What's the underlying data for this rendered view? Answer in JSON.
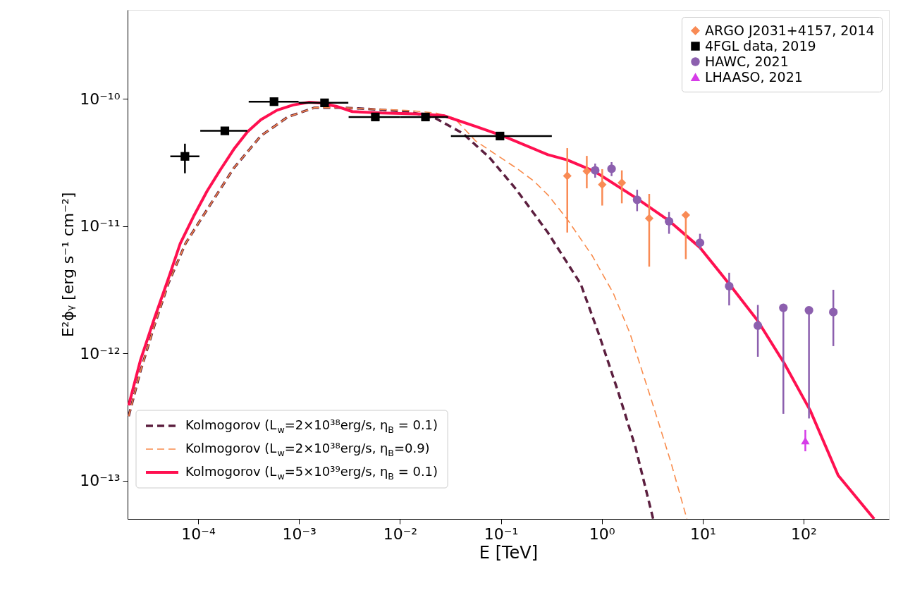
{
  "chart_data": {
    "type": "scatter",
    "xlabel": "E [TeV]",
    "ylabel": "E²ϕᵧ [erg s⁻¹ cm⁻²]",
    "log": "xy",
    "xlim": [
      2e-05,
      700
    ],
    "ylim": [
      5e-14,
      5e-10
    ],
    "xticks": [
      {
        "value": 0.0001,
        "label": "10⁻⁴"
      },
      {
        "value": 0.001,
        "label": "10⁻³"
      },
      {
        "value": 0.01,
        "label": "10⁻²"
      },
      {
        "value": 0.1,
        "label": "10⁻¹"
      },
      {
        "value": 1,
        "label": "10⁰"
      },
      {
        "value": 10,
        "label": "10¹"
      },
      {
        "value": 100,
        "label": "10²"
      }
    ],
    "yticks": [
      {
        "value": 1e-13,
        "label": "10⁻¹³"
      },
      {
        "value": 1e-12,
        "label": "10⁻¹²"
      },
      {
        "value": 1e-11,
        "label": "10⁻¹¹"
      },
      {
        "value": 1e-10,
        "label": "10⁻¹⁰"
      }
    ],
    "legend": "top right",
    "series": [
      {
        "name": "ARGO J2031+4157, 2014",
        "type": "scatter",
        "marker": "diamond",
        "color": "#f98b55",
        "x": [
          0.455,
          0.71,
          1.01,
          1.58,
          2.95,
          6.8
        ],
        "values": [
          2.48e-11,
          2.7e-11,
          2.12e-11,
          2.19e-11,
          1.15e-11,
          1.22e-11
        ],
        "errors": [
          [
            8.9e-12,
            4.1e-11
          ],
          [
            1.98e-11,
            3.56e-11
          ],
          [
            1.45e-11,
            2.8e-11
          ],
          [
            1.51e-11,
            2.74e-11
          ],
          [
            4.8e-12,
            1.79e-11
          ],
          [
            5.5e-12,
            1.22e-11
          ]
        ]
      },
      {
        "name": "4FGL data, 2019",
        "type": "scatter",
        "marker": "square",
        "color": "#000000",
        "x": [
          7.4e-05,
          0.000184,
          0.000565,
          0.00179,
          0.0057,
          0.0179,
          0.098
        ],
        "values": [
          3.53e-11,
          5.6e-11,
          9.5e-11,
          9.3e-11,
          7.2e-11,
          7.2e-11,
          5.1e-11
        ],
        "errors": [
          [
            2.6e-11,
            4.44e-11
          ],
          null,
          null,
          null,
          null,
          null,
          null
        ],
        "xerrors": [
          [
            5.3e-05,
            0.000103
          ],
          [
            0.000105,
            0.000307
          ],
          [
            0.000317,
            0.00099
          ],
          [
            0.00099,
            0.00308
          ],
          [
            0.0031,
            0.01
          ],
          [
            0.01,
            0.03
          ],
          [
            0.032,
            0.32
          ]
        ]
      },
      {
        "name": "HAWC, 2021",
        "type": "scatter",
        "marker": "circle",
        "color": "#8c5fae",
        "x": [
          0.86,
          1.25,
          2.24,
          4.64,
          9.4,
          18.3,
          35.2,
          63,
          113,
          197
        ],
        "values": [
          2.74e-11,
          2.82e-11,
          1.61e-11,
          1.09e-11,
          7.4e-12,
          3.37e-12,
          1.65e-12,
          2.28e-12,
          2.18e-12,
          2.11e-12
        ],
        "errors": [
          [
            2.4e-11,
            3.1e-11
          ],
          [
            2.47e-11,
            3.18e-11
          ],
          [
            1.31e-11,
            1.93e-11
          ],
          [
            8.7e-12,
            1.29e-11
          ],
          [
            6.6e-12,
            8.7e-12
          ],
          [
            2.38e-12,
            4.3e-12
          ],
          [
            9.4e-13,
            2.4e-12
          ],
          [
            3.35e-13,
            2.28e-12
          ],
          [
            3.08e-13,
            2.18e-12
          ],
          [
            1.14e-12,
            3.16e-12
          ]
        ]
      },
      {
        "name": "LHAASO, 2021",
        "type": "scatter",
        "marker": "triangle",
        "color": "#d63ce8",
        "x": [
          104
        ],
        "values": [
          2.06e-13
        ],
        "errors": [
          [
            1.7e-13,
            2.5e-13
          ]
        ]
      },
      {
        "name": "Kolmogorov (L$_{w}$=2×10³⁸erg/s, η$_{B}$ = 0.1)",
        "type": "line",
        "line_style": "dashed",
        "color": "#5c1f3f",
        "x": [
          2.05e-05,
          2.69e-05,
          3.7e-05,
          5.1e-05,
          7.5e-05,
          0.000123,
          0.000226,
          0.000419,
          0.000773,
          0.00143,
          0.00263,
          0.00487,
          0.0122,
          0.0225,
          0.0416,
          0.0767,
          0.142,
          0.292,
          0.618,
          0.946,
          1.45,
          2.16,
          3.23
        ],
        "values": [
          3.21e-13,
          7.3e-13,
          1.67e-12,
          3.59e-12,
          7.3e-12,
          1.35e-11,
          2.86e-11,
          5.12e-11,
          7.2e-11,
          8.53e-11,
          8.53e-11,
          8.33e-11,
          7.94e-11,
          7.03e-11,
          5.38e-11,
          3.47e-11,
          1.94e-11,
          8.9e-12,
          3.51e-12,
          1.38e-12,
          5e-13,
          1.82e-13,
          5e-14
        ]
      },
      {
        "name": "Kolmogorov (L$_{w}$=2×10³⁸erg/s, η$_{B}$=0.9)",
        "type": "line",
        "line_style": "dashed",
        "color": "#f98b4b",
        "x": [
          2.05e-05,
          2.69e-05,
          3.7e-05,
          5.1e-05,
          7.5e-05,
          0.000123,
          0.000226,
          0.000419,
          0.000773,
          0.00143,
          0.00263,
          0.00487,
          0.0122,
          0.0225,
          0.0347,
          0.0565,
          0.142,
          0.212,
          0.292,
          0.448,
          0.805,
          1.3,
          1.9,
          3.23,
          4.82,
          6.97
        ],
        "values": [
          3.21e-13,
          7.3e-13,
          1.67e-12,
          3.59e-12,
          7.3e-12,
          1.35e-11,
          2.86e-11,
          5.12e-11,
          7.2e-11,
          8.53e-11,
          8.53e-11,
          8.33e-11,
          8.1e-11,
          7.74e-11,
          7.03e-11,
          4.65e-11,
          2.86e-11,
          2.26e-11,
          1.76e-11,
          1.15e-11,
          5.84e-12,
          2.97e-12,
          1.44e-12,
          3.89e-13,
          1.41e-13,
          5e-14
        ]
      },
      {
        "name": "Kolmogorov (L$_{w}$=5×10³⁹erg/s, η$_{B}$ = 0.1)",
        "type": "line",
        "line_style": "solid",
        "color": "#ff1050",
        "x": [
          2.05e-05,
          2.69e-05,
          3.7e-05,
          5.1e-05,
          6.65e-05,
          9e-05,
          0.000123,
          0.000167,
          0.000226,
          0.000308,
          0.000419,
          0.000604,
          0.000874,
          0.00126,
          0.00161,
          0.00233,
          0.00337,
          0.0066,
          0.0166,
          0.0271,
          0.0565,
          0.104,
          0.292,
          0.455,
          0.855,
          2.22,
          4.65,
          9.4,
          18.3,
          34.8,
          64.4,
          116,
          220,
          500
        ],
        "values": [
          3.9e-13,
          8.9e-13,
          1.9e-12,
          3.92e-12,
          7.3e-12,
          1.19e-11,
          1.89e-11,
          2.79e-11,
          4.02e-11,
          5.5e-11,
          6.86e-11,
          8.13e-11,
          8.95e-11,
          9.4e-11,
          9.27e-11,
          8.74e-11,
          7.94e-11,
          7.74e-11,
          7.6e-11,
          7.38e-11,
          6.07e-11,
          5.12e-11,
          3.64e-11,
          3.31e-11,
          2.68e-11,
          1.65e-11,
          1.1e-11,
          6.78e-12,
          3.51e-12,
          1.82e-12,
          8.33e-13,
          3.57e-13,
          1.1e-13,
          5e-14
        ]
      }
    ]
  }
}
